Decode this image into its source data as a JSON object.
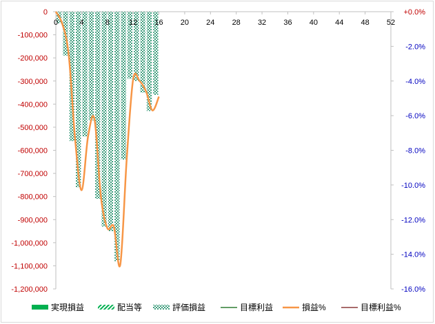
{
  "chart_data": {
    "type": "bar",
    "x_axis": {
      "min": 0,
      "max": 52,
      "ticks": [
        0,
        4,
        8,
        12,
        16,
        20,
        24,
        28,
        32,
        36,
        40,
        44,
        48,
        52
      ]
    },
    "y_left": {
      "min": -1200000,
      "max": 0,
      "ticks": [
        0,
        -100000,
        -200000,
        -300000,
        -400000,
        -500000,
        -600000,
        -700000,
        -800000,
        -900000,
        -1000000,
        -1100000,
        -1200000
      ],
      "tick_labels": [
        "0",
        "-100,000",
        "-200,000",
        "-300,000",
        "-400,000",
        "-500,000",
        "-600,000",
        "-700,000",
        "-800,000",
        "-900,000",
        "-1,000,000",
        "-1,100,000",
        "-1,200,000"
      ],
      "color": "#c00000"
    },
    "y_right": {
      "min": -16.0,
      "max": 0.0,
      "ticks": [
        0,
        -2,
        -4,
        -6,
        -8,
        -10,
        -12,
        -14,
        -16
      ],
      "tick_labels": [
        "+0.0%",
        "-2.0%",
        "-4.0%",
        "-6.0%",
        "-8.0%",
        "-10.0%",
        "-12.0%",
        "-14.0%",
        "-16.0%"
      ],
      "color": "#0000c0",
      "top_color": "#c00000"
    },
    "series": [
      {
        "name": "実現損益",
        "kind": "bar",
        "color": "#00b050",
        "values": []
      },
      {
        "name": "配当等",
        "kind": "bar-hatched",
        "color": "#00b050",
        "values": []
      },
      {
        "name": "評価損益",
        "kind": "bar-checker",
        "color": "#4aa88c",
        "x": [
          1,
          2,
          3,
          4,
          5,
          6,
          7,
          8,
          9,
          10,
          11,
          12,
          13,
          14,
          15,
          16
        ],
        "values": [
          -50000,
          -190000,
          -560000,
          -760000,
          -540000,
          -470000,
          -810000,
          -930000,
          -950000,
          -1080000,
          -640000,
          -290000,
          -300000,
          -350000,
          -430000,
          -360000
        ]
      },
      {
        "name": "目標利益",
        "kind": "line",
        "color": "#2e7d32",
        "values": []
      },
      {
        "name": "損益%",
        "kind": "line",
        "color": "#f79646",
        "axis": "right",
        "x": [
          0,
          1,
          2,
          3,
          4,
          5,
          6,
          7,
          8,
          9,
          10,
          11,
          12,
          13,
          14,
          15,
          16
        ],
        "values": [
          0,
          -0.7,
          -2.5,
          -7.4,
          -10.3,
          -7.2,
          -6.2,
          -10.7,
          -12.5,
          -12.4,
          -14.6,
          -8.5,
          -3.9,
          -4.0,
          -4.6,
          -5.7,
          -4.9
        ]
      },
      {
        "name": "目標利益%",
        "kind": "line",
        "color": "#8b3a3a",
        "values": []
      }
    ],
    "grid": false,
    "legend_position": "bottom"
  },
  "legend": [
    {
      "label": "実現損益",
      "swatch": "solid"
    },
    {
      "label": "配当等",
      "swatch": "hatch"
    },
    {
      "label": "評価損益",
      "swatch": "checker"
    },
    {
      "label": "目標利益",
      "swatch": "line-green"
    },
    {
      "label": "損益%",
      "swatch": "line-orange"
    },
    {
      "label": "目標利益%",
      "swatch": "line-maroon"
    }
  ]
}
